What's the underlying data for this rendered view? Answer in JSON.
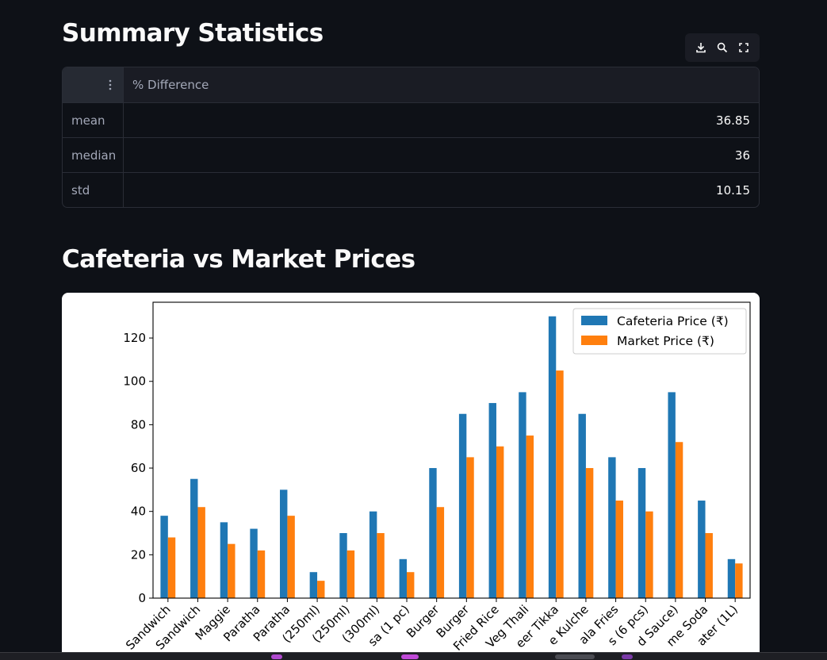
{
  "summary": {
    "title": "Summary Statistics",
    "toolbar": {
      "download_icon": "download-icon",
      "search_icon": "search-icon",
      "fullscreen_icon": "fullscreen-icon"
    },
    "table": {
      "index_header_icon": "vertical-dots-icon",
      "column_header": "% Difference",
      "rows": [
        {
          "label": "mean",
          "value": "36.85"
        },
        {
          "label": "median",
          "value": "36"
        },
        {
          "label": "std",
          "value": "10.15"
        }
      ]
    }
  },
  "chart_section": {
    "title": "Cafeteria vs Market Prices"
  },
  "chart_data": {
    "type": "bar",
    "categories": [
      "Sandwich",
      "Sandwich",
      "Maggie",
      "Paratha",
      "Paratha",
      "(250ml)",
      "(250ml)",
      "(300ml)",
      "sa (1 pc)",
      "Burger",
      "Burger",
      "Fried Rice",
      "Veg Thali",
      "eer Tikka",
      "e Kulche",
      "ala Fries",
      "s (6 pcs)",
      "d Sauce)",
      "me Soda",
      "ater (1L)"
    ],
    "series": [
      {
        "name": "Cafeteria Price (₹)",
        "color": "#1f77b4",
        "values": [
          38,
          55,
          35,
          32,
          50,
          12,
          30,
          40,
          18,
          60,
          85,
          90,
          95,
          130,
          85,
          65,
          60,
          95,
          45,
          18
        ]
      },
      {
        "name": "Market Price (₹)",
        "color": "#ff7f0e",
        "values": [
          28,
          42,
          25,
          22,
          38,
          8,
          22,
          30,
          12,
          42,
          65,
          70,
          75,
          105,
          60,
          45,
          40,
          72,
          30,
          16
        ]
      }
    ],
    "yticks": [
      0,
      20,
      40,
      60,
      80,
      100,
      120
    ],
    "ylim": [
      0,
      136.5
    ],
    "legend": "top-right",
    "grid": false
  }
}
